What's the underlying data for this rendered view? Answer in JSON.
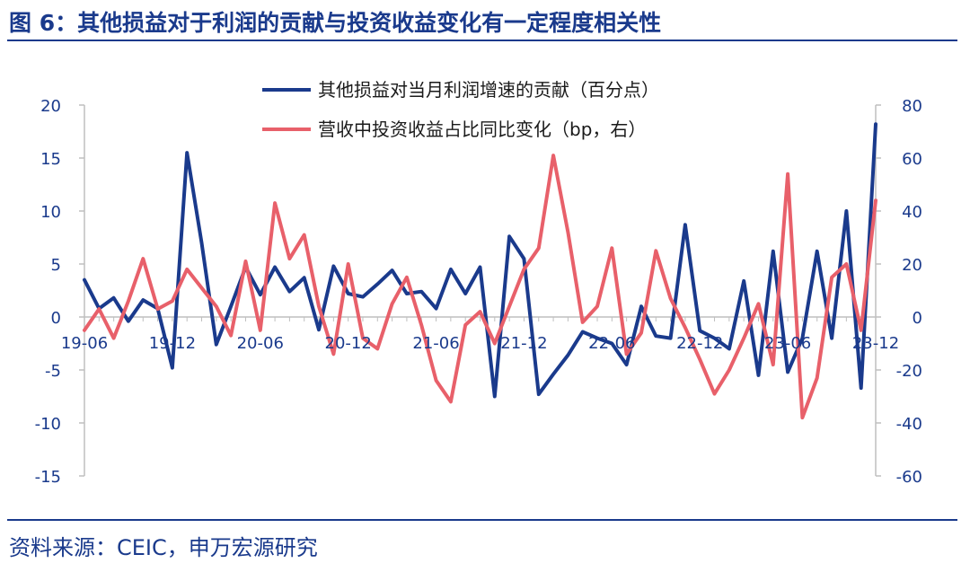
{
  "title": "图 6：其他损益对于利润的贡献与投资收益变化有一定程度相关性",
  "source": "资料来源：CEIC，申万宏源研究",
  "colors": {
    "primary": "#1a3a8c",
    "secondary": "#e8606a",
    "axis": "#bfbfbf"
  },
  "chart_data": {
    "type": "line",
    "x": [
      "19-06",
      "19-07",
      "19-08",
      "19-09",
      "19-10",
      "19-11",
      "19-12",
      "20-01",
      "20-02",
      "20-03",
      "20-04",
      "20-05",
      "20-06",
      "20-07",
      "20-08",
      "20-09",
      "20-10",
      "20-11",
      "20-12",
      "21-01",
      "21-02",
      "21-03",
      "21-04",
      "21-05",
      "21-06",
      "21-07",
      "21-08",
      "21-09",
      "21-10",
      "21-11",
      "21-12",
      "22-01",
      "22-02",
      "22-03",
      "22-04",
      "22-05",
      "22-06",
      "22-07",
      "22-08",
      "22-09",
      "22-10",
      "22-11",
      "22-12",
      "23-01",
      "23-02",
      "23-03",
      "23-04",
      "23-05",
      "23-06",
      "23-07",
      "23-08",
      "23-09",
      "23-10",
      "23-11",
      "23-12"
    ],
    "x_tick_labels": [
      "19-06",
      "19-12",
      "20-06",
      "20-12",
      "21-06",
      "21-12",
      "22-06",
      "22-12",
      "23-06",
      "23-12"
    ],
    "legend_position": "top-center",
    "series": [
      {
        "name": "其他损益对当月利润增速的贡献（百分点）",
        "axis": "left",
        "values": [
          3.5,
          0.8,
          1.8,
          -0.4,
          1.6,
          0.8,
          -4.8,
          15.5,
          7.0,
          -2.6,
          1.0,
          4.7,
          2.1,
          4.7,
          2.4,
          3.7,
          -1.2,
          4.8,
          2.2,
          1.9,
          3.1,
          4.4,
          2.2,
          2.4,
          0.8,
          4.5,
          2.2,
          4.7,
          -7.5,
          7.6,
          5.5,
          -7.3,
          -5.4,
          -3.6,
          -1.4,
          -2.0,
          -2.5,
          -4.5,
          1.0,
          -1.8,
          -2.0,
          8.7,
          -1.3,
          -2.0,
          -3.0,
          3.4,
          -5.5,
          6.2,
          -5.2,
          -2.0,
          6.2,
          -2.0,
          10.0,
          -6.7,
          18.2
        ]
      },
      {
        "name": "营收中投资收益占比同比变化（bp，右）",
        "axis": "right",
        "values": [
          -5,
          3,
          -8,
          6,
          22,
          3,
          6,
          18,
          11,
          4,
          -7,
          21,
          -5,
          43,
          22,
          31,
          4,
          -14,
          20,
          -8,
          -12,
          5,
          15,
          -3,
          -24,
          -32,
          -3,
          2,
          -10,
          4,
          18,
          26,
          61,
          32,
          -2,
          4,
          26,
          -14,
          -6,
          25,
          7,
          -4,
          -16,
          -29,
          -20,
          -8,
          5,
          -18,
          54,
          -38,
          -23,
          15,
          20,
          -5,
          44
        ]
      }
    ],
    "yleft_lim": [
      -15,
      20
    ],
    "yleft_ticks": [
      -15,
      -10,
      -5,
      0,
      5,
      10,
      15,
      20
    ],
    "yright_lim": [
      -60,
      80
    ],
    "yright_ticks": [
      -60,
      -40,
      -20,
      0,
      20,
      40,
      60,
      80
    ],
    "grid": false
  }
}
